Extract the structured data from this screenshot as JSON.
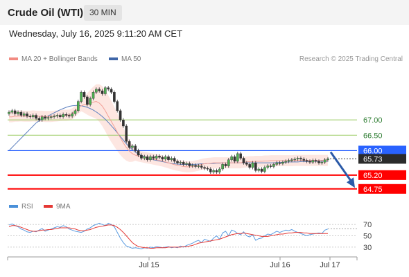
{
  "header": {
    "title": "Crude Oil (WTI)",
    "timeframe": "30 MIN"
  },
  "date": "Wednesday, July 16, 2025 9:11:20 AM CET",
  "legend": {
    "ma20": {
      "label": "MA 20 + Bollinger Bands",
      "color": "#f28b82"
    },
    "ma50": {
      "label": "MA 50",
      "color": "#3f66a8"
    },
    "rsi": {
      "label": "RSI",
      "color": "#4a90d9"
    },
    "ma9": {
      "label": "9MA",
      "color": "#e53935"
    }
  },
  "credit": "Research © 2025 Trading Central",
  "chart_data": {
    "type": "candlestick",
    "price_levels": [
      {
        "value": 67.0,
        "label": "67.00",
        "style": "green"
      },
      {
        "value": 66.5,
        "label": "66.50",
        "style": "green"
      },
      {
        "value": 66.0,
        "label": "66.00",
        "style": "pivot"
      },
      {
        "value": 65.73,
        "label": "65.73",
        "style": "last"
      },
      {
        "value": 65.2,
        "label": "65.20",
        "style": "support"
      },
      {
        "value": 64.75,
        "label": "64.75",
        "style": "support"
      }
    ],
    "x_labels": [
      "Jul 15",
      "Jul 16",
      "Jul 17"
    ],
    "ohlc_close": [
      67.25,
      67.3,
      67.2,
      67.25,
      67.15,
      67.2,
      67.12,
      67.1,
      67.15,
      67.05,
      67.0,
      67.1,
      67.05,
      67.08,
      67.1,
      67.12,
      67.15,
      67.1,
      67.18,
      67.15,
      67.12,
      67.2,
      67.3,
      67.6,
      67.9,
      67.75,
      67.5,
      67.7,
      67.9,
      68.0,
      67.95,
      67.85,
      68.05,
      68.0,
      67.9,
      67.6,
      67.3,
      67.0,
      66.8,
      66.3,
      66.1,
      66.15,
      66.0,
      65.85,
      65.75,
      65.8,
      65.7,
      65.8,
      65.75,
      65.82,
      65.78,
      65.72,
      65.8,
      65.7,
      65.75,
      65.65,
      65.6,
      65.62,
      65.55,
      65.58,
      65.5,
      65.52,
      65.48,
      65.5,
      65.45,
      65.42,
      65.4,
      65.3,
      65.35,
      65.3,
      65.4,
      65.55,
      65.5,
      65.7,
      65.8,
      65.65,
      65.9,
      65.75,
      65.6,
      65.55,
      65.45,
      65.6,
      65.35,
      65.4,
      65.32,
      65.45,
      65.5,
      65.48,
      65.55,
      65.6,
      65.58,
      65.62,
      65.65,
      65.68,
      65.7,
      65.72,
      65.75,
      65.72,
      65.68,
      65.65,
      65.62,
      65.68,
      65.65,
      65.6,
      65.62,
      65.7,
      65.73
    ],
    "ma20": [
      67.1,
      67.1,
      67.12,
      67.12,
      67.13,
      67.12,
      67.12,
      67.12,
      67.13,
      67.12,
      67.12,
      67.12,
      67.11,
      67.11,
      67.11,
      67.12,
      67.13,
      67.14,
      67.15,
      67.15,
      67.16,
      67.2,
      67.28,
      67.38,
      67.46,
      67.5,
      67.52,
      67.55,
      67.58,
      67.6,
      67.55,
      67.45,
      67.3,
      67.12,
      66.95,
      66.78,
      66.6,
      66.42,
      66.25,
      66.1,
      65.98,
      65.9,
      65.85,
      65.82,
      65.8,
      65.78,
      65.76,
      65.74,
      65.72,
      65.7,
      65.68,
      65.66,
      65.63,
      65.6,
      65.57,
      65.54,
      65.52,
      65.5,
      65.48,
      65.47,
      65.47,
      65.48,
      65.5,
      65.52,
      65.55,
      65.57,
      65.58,
      65.59,
      65.6,
      65.6,
      65.6,
      65.6,
      65.6,
      65.6,
      65.6,
      65.6,
      65.6,
      65.6,
      65.62,
      65.63,
      65.64,
      65.64,
      65.65,
      65.65,
      65.65,
      65.66,
      65.66,
      65.67,
      65.67,
      65.67,
      65.67,
      65.67,
      65.67,
      65.67,
      65.67,
      65.68,
      65.68,
      65.68,
      65.68,
      65.68,
      65.68,
      65.68,
      65.68,
      65.68,
      65.68,
      65.68,
      65.68
    ],
    "ma50": [
      66.0,
      66.1,
      66.2,
      66.3,
      66.4,
      66.5,
      66.6,
      66.7,
      66.8,
      66.9,
      66.97,
      67.03,
      67.08,
      67.13,
      67.18,
      67.23,
      67.28,
      67.33,
      67.37,
      67.41,
      67.44,
      67.46,
      67.47,
      67.47,
      67.46,
      67.44,
      67.41,
      67.37,
      67.32,
      67.26,
      67.19,
      67.11,
      67.02,
      66.92,
      66.81,
      66.7,
      66.58,
      66.46,
      66.34,
      66.22,
      66.12,
      66.03,
      65.95,
      65.89,
      65.84,
      65.8,
      65.76,
      65.73,
      65.7,
      65.68,
      65.66,
      65.64,
      65.62,
      65.6,
      65.58,
      65.57,
      65.56,
      65.55,
      65.55,
      65.55,
      65.55,
      65.55,
      65.55,
      65.56,
      65.57,
      65.57,
      65.58,
      65.58,
      65.58,
      65.59,
      65.59,
      65.6,
      65.6,
      65.6,
      65.6,
      65.6,
      65.6,
      65.6,
      65.6,
      65.6,
      65.6,
      65.6,
      65.6,
      65.6,
      65.6,
      65.6,
      65.6,
      65.6,
      65.6,
      65.61,
      65.61,
      65.62,
      65.62,
      65.63,
      65.63,
      65.63,
      65.63,
      65.64,
      65.64,
      65.64,
      65.65,
      65.65,
      65.65,
      65.65,
      65.65,
      65.65,
      65.65
    ],
    "rsi_axis_ticks": [
      70,
      50,
      30
    ],
    "rsi": [
      69,
      71,
      68,
      66,
      62,
      60,
      57,
      56,
      58,
      57,
      60,
      63,
      58,
      60,
      62,
      64,
      66,
      65,
      68,
      66,
      62,
      60,
      58,
      57,
      56,
      58,
      62,
      64,
      68,
      70,
      72,
      70,
      68,
      72,
      70,
      66,
      56,
      46,
      38,
      32,
      30,
      28,
      29,
      28,
      27,
      29,
      28,
      30,
      29,
      31,
      30,
      29,
      30,
      31,
      29,
      30,
      29,
      32,
      30,
      33,
      35,
      37,
      40,
      42,
      38,
      44,
      42,
      40,
      46,
      50,
      44,
      55,
      58,
      50,
      60,
      58,
      54,
      52,
      57,
      50,
      48,
      52,
      42,
      45,
      46,
      50,
      53,
      52,
      55,
      58,
      56,
      58,
      60,
      59,
      61,
      58,
      56,
      54,
      52,
      50,
      52,
      53,
      54,
      55,
      54,
      60,
      62
    ],
    "ma9": [
      66,
      68,
      68,
      67,
      65,
      63,
      61,
      59,
      58,
      58,
      59,
      60,
      60,
      61,
      61,
      62,
      63,
      64,
      64,
      64,
      64,
      63,
      62,
      60,
      59,
      59,
      60,
      61,
      63,
      65,
      66,
      67,
      68,
      69,
      69,
      68,
      65,
      61,
      56,
      50,
      44,
      38,
      34,
      31,
      30,
      29,
      29,
      28,
      28,
      29,
      29,
      29,
      29,
      30,
      30,
      30,
      30,
      30,
      31,
      31,
      32,
      33,
      35,
      37,
      38,
      39,
      40,
      41,
      42,
      43,
      44,
      46,
      48,
      50,
      52,
      53,
      54,
      54,
      55,
      54,
      53,
      52,
      51,
      50,
      49,
      49,
      49,
      50,
      51,
      52,
      53,
      53,
      54,
      55,
      55,
      56,
      56,
      56,
      55,
      55,
      54,
      54,
      54,
      54,
      54,
      54,
      54
    ]
  }
}
